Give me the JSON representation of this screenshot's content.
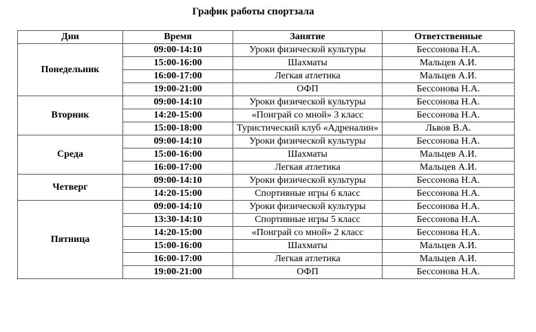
{
  "title": "График работы спортзала",
  "headers": [
    "Дни",
    "Время",
    "Занятие",
    "Ответственные"
  ],
  "days": [
    {
      "day": "Понедельник",
      "rows": [
        {
          "time": "09:00-14:10",
          "activity": "Уроки физической культуры",
          "responsible": "Бессонова Н.А."
        },
        {
          "time": "15:00-16:00",
          "activity": "Шахматы",
          "responsible": "Мальцев А.И."
        },
        {
          "time": "16:00-17:00",
          "activity": "Легкая атлетика",
          "responsible": "Мальцев А.И."
        },
        {
          "time": "19:00-21:00",
          "activity": "ОФП",
          "responsible": "Бессонова Н.А."
        }
      ]
    },
    {
      "day": "Вторник",
      "rows": [
        {
          "time": "09:00-14:10",
          "activity": "Уроки физической культуры",
          "responsible": "Бессонова Н.А."
        },
        {
          "time": "14:20-15:00",
          "activity": "«Поиграй со мной» 3 класс",
          "responsible": "Бессонова Н.А."
        },
        {
          "time": "15:00-18:00",
          "activity": "Туристический клуб «Адреналин»",
          "responsible": "Львов В.А."
        }
      ]
    },
    {
      "day": "Среда",
      "rows": [
        {
          "time": "09:00-14:10",
          "activity": "Уроки физической культуры",
          "responsible": "Бессонова Н.А."
        },
        {
          "time": "15:00-16:00",
          "activity": "Шахматы",
          "responsible": "Мальцев А.И."
        },
        {
          "time": "16:00-17:00",
          "activity": "Легкая атлетика",
          "responsible": "Мальцев А.И."
        }
      ]
    },
    {
      "day": "Четверг",
      "rows": [
        {
          "time": "09:00-14:10",
          "activity": "Уроки физической культуры",
          "responsible": "Бессонова Н.А."
        },
        {
          "time": "14:20-15:00",
          "activity": "Спортивные игры 6 класс",
          "responsible": "Бессонова Н.А."
        }
      ]
    },
    {
      "day": "Пятница",
      "rows": [
        {
          "time": "09:00-14:10",
          "activity": "Уроки физической культуры",
          "responsible": "Бессонова Н.А."
        },
        {
          "time": "13:30-14:10",
          "activity": "Спортивные игры 5 класс",
          "responsible": "Бессонова Н.А."
        },
        {
          "time": "14:20-15:00",
          "activity": "«Поиграй со мной» 2 класс",
          "responsible": "Бессонова Н.А."
        },
        {
          "time": "15:00-16:00",
          "activity": "Шахматы",
          "responsible": "Мальцев А.И."
        },
        {
          "time": "16:00-17:00",
          "activity": "Легкая атлетика",
          "responsible": "Мальцев А.И."
        },
        {
          "time": "19:00-21:00",
          "activity": "ОФП",
          "responsible": "Бессонова Н.А."
        }
      ]
    }
  ]
}
